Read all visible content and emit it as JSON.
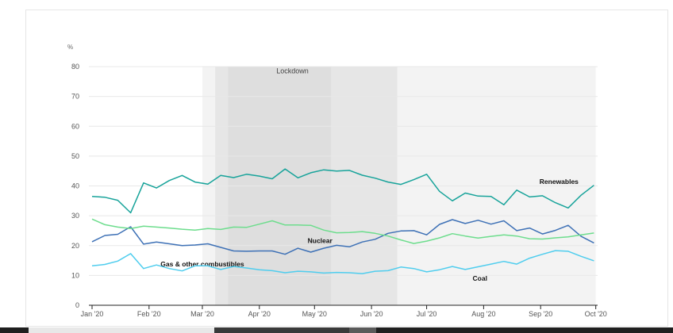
{
  "chart_data": {
    "type": "line",
    "ylabel": "%",
    "ylim": [
      0,
      80
    ],
    "yticks": [
      "0",
      "10",
      "20",
      "30",
      "40",
      "50",
      "60",
      "70",
      "80"
    ],
    "xlim": [
      "2020-01-01",
      "2020-10-02"
    ],
    "xticks": [
      {
        "date": "2020-01-01",
        "label": "Jan '20"
      },
      {
        "date": "2020-02-01",
        "label": "Feb '20"
      },
      {
        "date": "2020-03-01",
        "label": "Mar '20"
      },
      {
        "date": "2020-04-01",
        "label": "Apr '20"
      },
      {
        "date": "2020-05-01",
        "label": "May '20"
      },
      {
        "date": "2020-06-01",
        "label": "Jun '20"
      },
      {
        "date": "2020-07-01",
        "label": "Jul '20"
      },
      {
        "date": "2020-08-01",
        "label": "Aug '20"
      },
      {
        "date": "2020-09-01",
        "label": "Sep '20"
      },
      {
        "date": "2020-10-01",
        "label": "Oct '20"
      }
    ],
    "shaded_periods": [
      {
        "start": "2020-03-01",
        "end": "2020-10-01",
        "color": "#f3f3f3"
      },
      {
        "start": "2020-03-08",
        "end": "2020-06-15",
        "color": "#e6e6e6"
      },
      {
        "start": "2020-03-15",
        "end": "2020-05-10",
        "color": "#dedede"
      }
    ],
    "annotations": [
      {
        "text": "Lockdown",
        "date": "2020-04-19",
        "y": 78.5
      }
    ],
    "x": [
      "2020-01-01",
      "2020-01-08",
      "2020-01-15",
      "2020-01-22",
      "2020-01-29",
      "2020-02-05",
      "2020-02-12",
      "2020-02-19",
      "2020-02-26",
      "2020-03-04",
      "2020-03-11",
      "2020-03-18",
      "2020-03-25",
      "2020-04-01",
      "2020-04-08",
      "2020-04-15",
      "2020-04-22",
      "2020-04-29",
      "2020-05-06",
      "2020-05-13",
      "2020-05-20",
      "2020-05-27",
      "2020-06-03",
      "2020-06-10",
      "2020-06-17",
      "2020-06-24",
      "2020-07-01",
      "2020-07-08",
      "2020-07-15",
      "2020-07-22",
      "2020-07-29",
      "2020-08-05",
      "2020-08-12",
      "2020-08-19",
      "2020-08-26",
      "2020-09-02",
      "2020-09-09",
      "2020-09-16",
      "2020-09-23",
      "2020-09-30"
    ],
    "series": [
      {
        "name": "Renewables",
        "color": "#17a39a",
        "label_date": "2020-09-11",
        "label_y": 41.5,
        "values": [
          36.5,
          36.2,
          35.2,
          31.0,
          41.0,
          39.3,
          41.8,
          43.5,
          41.3,
          40.6,
          43.5,
          42.8,
          43.9,
          43.3,
          42.4,
          45.7,
          42.7,
          44.4,
          45.4,
          45.0,
          45.2,
          43.6,
          42.6,
          41.3,
          40.5,
          42.1,
          43.9,
          38.2,
          35.0,
          37.6,
          36.6,
          36.5,
          33.7,
          38.6,
          36.3,
          36.7,
          34.4,
          32.6,
          36.9,
          40.2
        ]
      },
      {
        "name": "Nuclear",
        "color": "#3e71b6",
        "label_date": "2020-05-04",
        "label_y": 21.6,
        "values": [
          21.3,
          23.4,
          23.8,
          26.3,
          20.5,
          21.2,
          20.6,
          20.0,
          20.2,
          20.6,
          19.4,
          18.2,
          18.1,
          18.2,
          18.2,
          17.1,
          19.1,
          17.8,
          19.1,
          20.1,
          19.6,
          21.2,
          22.1,
          24.1,
          24.9,
          25.0,
          23.6,
          27.1,
          28.7,
          27.4,
          28.5,
          27.2,
          28.3,
          25.0,
          25.9,
          23.9,
          25.1,
          26.8,
          23.1,
          20.9
        ]
      },
      {
        "name": "Gas & other combustibles",
        "color": "#6ddd8d",
        "label_date": "2020-03-01",
        "label_y": 13.8,
        "values": [
          28.9,
          27.0,
          26.2,
          25.7,
          26.5,
          26.2,
          25.9,
          25.5,
          25.2,
          25.7,
          25.4,
          26.2,
          26.1,
          27.2,
          28.3,
          26.9,
          26.9,
          26.8,
          25.2,
          24.3,
          24.4,
          24.7,
          24.1,
          23.2,
          21.9,
          20.7,
          21.5,
          22.6,
          24.0,
          23.2,
          22.5,
          23.1,
          23.6,
          23.2,
          22.3,
          22.2,
          22.6,
          22.9,
          23.6,
          24.2
        ]
      },
      {
        "name": "Coal",
        "color": "#4fcdee",
        "label_date": "2020-07-30",
        "label_y": 9.0,
        "values": [
          13.2,
          13.7,
          14.8,
          17.3,
          12.3,
          13.5,
          12.3,
          11.5,
          13.2,
          13.2,
          12.0,
          13.0,
          12.5,
          11.9,
          11.6,
          10.9,
          11.4,
          11.2,
          10.8,
          11.0,
          10.9,
          10.6,
          11.4,
          11.6,
          12.8,
          12.3,
          11.2,
          11.9,
          13.0,
          12.0,
          12.9,
          13.8,
          14.7,
          13.8,
          15.8,
          17.1,
          18.3,
          18.1,
          16.4,
          14.9
        ]
      }
    ]
  },
  "colors": {
    "grid": "#e8e8e8",
    "axis": "#222222",
    "bottom_bar": "#1f1f1f"
  }
}
